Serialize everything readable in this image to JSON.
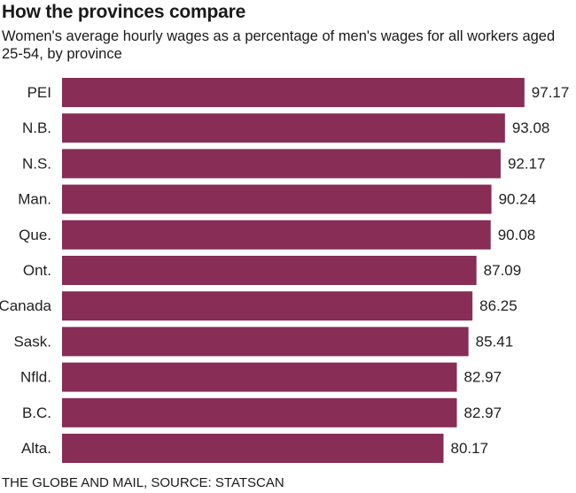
{
  "header": {
    "title": "How the provinces compare",
    "subtitle": "Women's average hourly wages as a percentage of men's wages for all workers aged 25-54, by province"
  },
  "footer": {
    "source": "THE GLOBE AND MAIL, SOURCE: STATSCAN"
  },
  "colors": {
    "bar": "#872d56"
  },
  "chart_data": {
    "type": "bar",
    "orientation": "horizontal",
    "title": "How the provinces compare",
    "subtitle": "Women's average hourly wages as a percentage of men's wages for all workers aged 25-54, by province",
    "categories": [
      "PEI",
      "N.B.",
      "N.S.",
      "Man.",
      "Que.",
      "Ont.",
      "Canada",
      "Sask.",
      "Nfld.",
      "B.C.",
      "Alta."
    ],
    "values": [
      97.17,
      93.08,
      92.17,
      90.24,
      90.08,
      87.09,
      86.25,
      85.41,
      82.97,
      82.97,
      80.17
    ],
    "value_labels": [
      "97.17",
      "93.08",
      "92.17",
      "90.24",
      "90.08",
      "87.09",
      "86.25",
      "85.41",
      "82.97",
      "82.97",
      "80.17"
    ],
    "xlim": [
      0,
      100
    ],
    "grid": false,
    "legend": "none",
    "source": "THE GLOBE AND MAIL, SOURCE: STATSCAN"
  }
}
